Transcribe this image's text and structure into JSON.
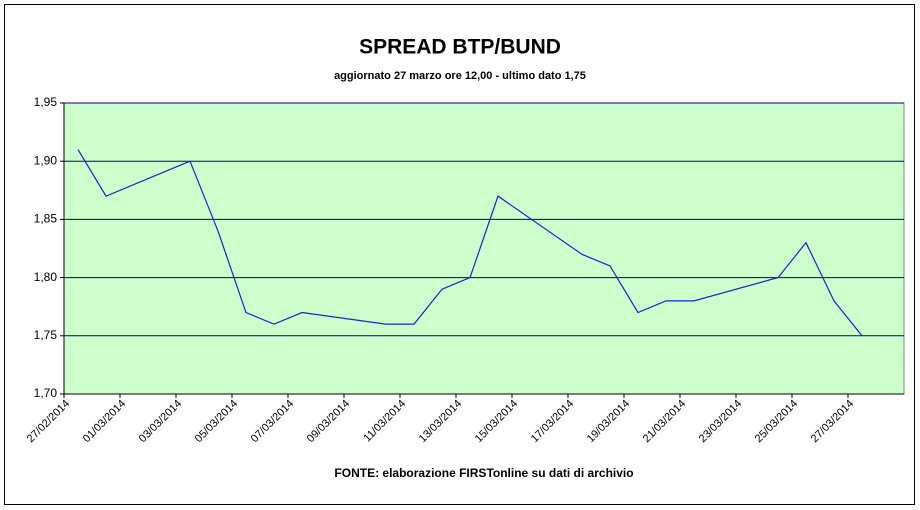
{
  "chart_data": {
    "type": "line",
    "title": "SPREAD BTP/BUND",
    "subtitle": "aggiornato 27 marzo ore 12,00 - ultimo dato 1,75",
    "source": "FONTE: elaborazione FIRSTonline su dati di archivio",
    "x": [
      "27/02/2014",
      "28/02/2014",
      "03/03/2014",
      "04/03/2014",
      "05/03/2014",
      "06/03/2014",
      "07/03/2014",
      "10/03/2014",
      "11/03/2014",
      "12/03/2014",
      "13/03/2014",
      "14/03/2014",
      "17/03/2014",
      "18/03/2014",
      "19/03/2014",
      "20/03/2014",
      "21/03/2014",
      "24/03/2014",
      "25/03/2014",
      "26/03/2014",
      "27/03/2014"
    ],
    "values": [
      1.91,
      1.87,
      1.9,
      1.84,
      1.77,
      1.76,
      1.77,
      1.76,
      1.76,
      1.79,
      1.8,
      1.87,
      1.82,
      1.81,
      1.77,
      1.78,
      1.78,
      1.8,
      1.83,
      1.78,
      1.75
    ],
    "color": "#2020d0",
    "xlim": [
      "27/02/2014",
      "29/03/2014"
    ],
    "xticks": [
      "27/02/2014",
      "01/03/2014",
      "03/03/2014",
      "05/03/2014",
      "07/03/2014",
      "09/03/2014",
      "11/03/2014",
      "13/03/2014",
      "15/03/2014",
      "17/03/2014",
      "19/03/2014",
      "21/03/2014",
      "23/03/2014",
      "25/03/2014",
      "27/03/2014"
    ],
    "ylim": [
      1.7,
      1.95
    ],
    "yticks": [
      {
        "value": 1.7,
        "label": "1,70"
      },
      {
        "value": 1.75,
        "label": "1,75"
      },
      {
        "value": 1.8,
        "label": "1,80"
      },
      {
        "value": 1.85,
        "label": "1,85"
      },
      {
        "value": 1.9,
        "label": "1,90"
      },
      {
        "value": 1.95,
        "label": "1,95"
      }
    ],
    "grid": true,
    "plot_background": "#ccffcc"
  }
}
